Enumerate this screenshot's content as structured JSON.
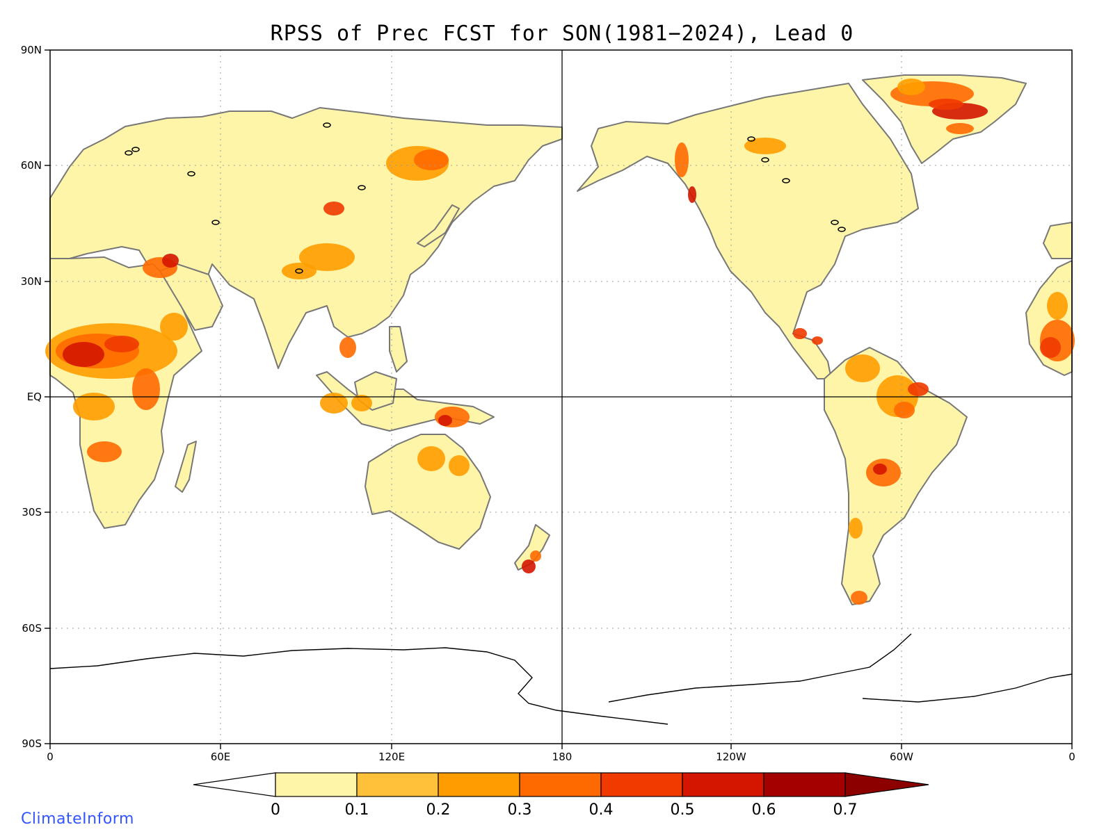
{
  "title": "RPSS of Prec FCST for SON(1981−2024), Lead 0",
  "lat_labels": [
    "90N",
    "60N",
    "30N",
    "EQ",
    "30S",
    "60S",
    "90S"
  ],
  "lon_labels": [
    "0",
    "60E",
    "120E",
    "180",
    "120W",
    "60W",
    "0"
  ],
  "colorbar": {
    "labels": [
      "0",
      "0.1",
      "0.2",
      "0.3",
      "0.4",
      "0.5",
      "0.6",
      "0.7"
    ],
    "colors": [
      "#ffffff",
      "#fff5a8",
      "#ffc13a",
      "#ff9d00",
      "#ff6a00",
      "#f03a00",
      "#d41600",
      "#a50000",
      "#8c0000"
    ]
  },
  "colors": {
    "land_base": "#fff5a8",
    "coast": "#777777",
    "lakes": "#000000",
    "grid": "#9a9a9a",
    "brand": "#3355ff"
  },
  "branding": "ClimateInform"
}
